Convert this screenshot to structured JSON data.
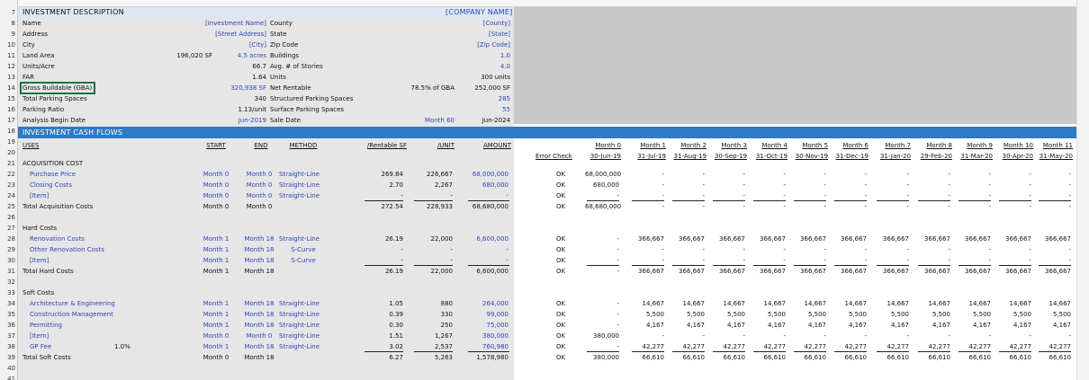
{
  "rownums": [
    "7",
    "8",
    "9",
    "10",
    "11",
    "12",
    "13",
    "14",
    "15",
    "16",
    "17",
    "18",
    "19",
    "20",
    "21",
    "22",
    "23",
    "24",
    "25",
    "26",
    "27",
    "28",
    "29",
    "30",
    "31",
    "32",
    "33",
    "34",
    "35",
    "36",
    "37",
    "38",
    "39",
    "40",
    "41"
  ],
  "investment": {
    "title": "INVESTMENT DESCRIPTION",
    "company": "[COMPANY NAME]",
    "name_label": "Name",
    "name_value": "[Investment Name]",
    "county_label": "County",
    "county_value": "[County]",
    "address_label": "Address",
    "address_value": "[Street Address]",
    "state_label": "State",
    "state_value": "[State]",
    "city_label": "City",
    "city_value": "[City]",
    "zip_label": "Zip Code",
    "zip_value": "[Zip Code]",
    "land_label": "Land Area",
    "land_sf": "196,020 SF",
    "land_acres": "4.5 acres",
    "buildings_label": "Buildings",
    "buildings_value": "1.0",
    "units_acre_label": "Units/Acre",
    "units_acre_value": "66.7",
    "stories_label": "Avg. # of Stories",
    "stories_value": "4.0",
    "far_label": "FAR",
    "far_value": "1.64",
    "units_label": "Units",
    "units_value": "300 units",
    "gba_label": "Gross Buildable (GBA)",
    "gba_value": "320,938 SF",
    "net_rentable_label": "Net Rentable",
    "net_rentable_pct": "78.5% of GBA",
    "net_rentable_value": "252,000 SF",
    "parking_total_label": "Total Parking Spaces",
    "parking_total_value": "340",
    "structured_label": "Structured Parking Spaces",
    "structured_value": "285",
    "ratio_label": "Parking Ratio",
    "ratio_value": "1.13/unit",
    "surface_label": "Surface Parking Spaces",
    "surface_value": "55",
    "begin_label": "Analysis Begin Date",
    "begin_value": "Jun-2019",
    "sale_label": "Sale Date",
    "sale_month": "Month 60",
    "sale_value": "Jun-2024"
  },
  "cashflows": {
    "title": "INVESTMENT CASH FLOWS",
    "col_uses": "USES",
    "col_start": "START",
    "col_end": "END",
    "col_method": "METHOD",
    "col_rentable": "/Rentable SF",
    "col_unit": "/UNIT",
    "col_amount": "AMOUNT",
    "col_error": "Error Check",
    "months": [
      {
        "m": "Month 0",
        "d": "30-Jun-19"
      },
      {
        "m": "Month 1",
        "d": "31-Jul-19"
      },
      {
        "m": "Month 2",
        "d": "31-Aug-19"
      },
      {
        "m": "Month 3",
        "d": "30-Sep-19"
      },
      {
        "m": "Month 4",
        "d": "31-Oct-19"
      },
      {
        "m": "Month 5",
        "d": "30-Nov-19"
      },
      {
        "m": "Month 6",
        "d": "31-Dec-19"
      },
      {
        "m": "Month 7",
        "d": "31-Jan-20"
      },
      {
        "m": "Month 8",
        "d": "29-Feb-20"
      },
      {
        "m": "Month 9",
        "d": "31-Mar-20"
      },
      {
        "m": "Month 10",
        "d": "30-Apr-20"
      },
      {
        "m": "Month 11",
        "d": "31-May-20"
      }
    ],
    "acq_title": "ACQUISITION COST",
    "acq_rows": [
      {
        "label": "Purchase Price",
        "start": "Month 0",
        "end": "Month 0",
        "method": "Straight-Line",
        "rsf": "269.84",
        "unit": "226,667",
        "amount": "68,000,000",
        "check": "OK",
        "vals": [
          "68,000,000",
          "-",
          "-",
          "-",
          "-",
          "-",
          "-",
          "-",
          "-",
          "-",
          "-",
          "-"
        ]
      },
      {
        "label": "Closing Costs",
        "start": "Month 0",
        "end": "Month 0",
        "method": "Straight-Line",
        "rsf": "2.70",
        "unit": "2,267",
        "amount": "680,000",
        "check": "OK",
        "vals": [
          "680,000",
          "-",
          "-",
          "-",
          "-",
          "-",
          "-",
          "-",
          "-",
          "-",
          "-",
          "-"
        ]
      },
      {
        "label": "[Item]",
        "start": "Month 0",
        "end": "Month 0",
        "method": "Straight-Line",
        "rsf": "-",
        "unit": "-",
        "amount": "-",
        "check": "OK",
        "vals": [
          "-",
          "-",
          "-",
          "-",
          "-",
          "-",
          "-",
          "-",
          "-",
          "-",
          "-",
          "-"
        ]
      }
    ],
    "acq_total": {
      "label": "Total Acquisition Costs",
      "start": "Month 0",
      "end": "Month 0",
      "rsf": "272.54",
      "unit": "228,933",
      "amount": "68,680,000",
      "check": "OK",
      "vals": [
        "68,680,000",
        "-",
        "-",
        "-",
        "-",
        "-",
        "-",
        "-",
        "-",
        "-",
        "-",
        "-"
      ]
    },
    "hard_title": "Hard Costs",
    "hard_rows": [
      {
        "label": "Renovation Costs",
        "start": "Month 1",
        "end": "Month 18",
        "method": "Straight-Line",
        "rsf": "26.19",
        "unit": "22,000",
        "amount": "6,600,000",
        "check": "OK",
        "vals": [
          "-",
          "366,667",
          "366,667",
          "366,667",
          "366,667",
          "366,667",
          "366,667",
          "366,667",
          "366,667",
          "366,667",
          "366,667",
          "366,667"
        ]
      },
      {
        "label": "Other Renovation Costs",
        "start": "Month 1",
        "end": "Month 18",
        "method": "S-Curve",
        "rsf": "-",
        "unit": "-",
        "amount": "-",
        "check": "OK",
        "vals": [
          "-",
          "-",
          "-",
          "-",
          "-",
          "-",
          "-",
          "-",
          "-",
          "-",
          "-",
          "-"
        ]
      },
      {
        "label": "[Item]",
        "start": "Month 1",
        "end": "Month 18",
        "method": "S-Curve",
        "rsf": "-",
        "unit": "-",
        "amount": "-",
        "check": "OK",
        "vals": [
          "-",
          "-",
          "-",
          "-",
          "-",
          "-",
          "-",
          "-",
          "-",
          "-",
          "-",
          "-"
        ]
      }
    ],
    "hard_total": {
      "label": "Total Hard Costs",
      "start": "Month 1",
      "end": "Month 18",
      "rsf": "26.19",
      "unit": "22,000",
      "amount": "6,600,000",
      "check": "OK",
      "vals": [
        "-",
        "366,667",
        "366,667",
        "366,667",
        "366,667",
        "366,667",
        "366,667",
        "366,667",
        "366,667",
        "366,667",
        "366,667",
        "366,667"
      ]
    },
    "soft_title": "Soft Costs",
    "soft_rows": [
      {
        "label": "Architecture & Engineering",
        "start": "Month 1",
        "end": "Month 18",
        "method": "Straight-Line",
        "rsf": "1.05",
        "unit": "880",
        "amount": "264,000",
        "check": "OK",
        "vals": [
          "-",
          "14,667",
          "14,667",
          "14,667",
          "14,667",
          "14,667",
          "14,667",
          "14,667",
          "14,667",
          "14,667",
          "14,667",
          "14,667"
        ]
      },
      {
        "label": "Construction Management",
        "start": "Month 1",
        "end": "Month 18",
        "method": "Straight-Line",
        "rsf": "0.39",
        "unit": "330",
        "amount": "99,000",
        "check": "OK",
        "vals": [
          "-",
          "5,500",
          "5,500",
          "5,500",
          "5,500",
          "5,500",
          "5,500",
          "5,500",
          "5,500",
          "5,500",
          "5,500",
          "5,500"
        ]
      },
      {
        "label": "Permitting",
        "start": "Month 1",
        "end": "Month 18",
        "method": "Straight-Line",
        "rsf": "0.30",
        "unit": "250",
        "amount": "75,000",
        "check": "OK",
        "vals": [
          "-",
          "4,167",
          "4,167",
          "4,167",
          "4,167",
          "4,167",
          "4,167",
          "4,167",
          "4,167",
          "4,167",
          "4,167",
          "4,167"
        ]
      },
      {
        "label": "[Item]",
        "start": "Month 0",
        "end": "Month 0",
        "method": "Straight-Line",
        "rsf": "1.51",
        "unit": "1,267",
        "amount": "380,000",
        "check": "OK",
        "vals": [
          "380,000",
          "-",
          "-",
          "-",
          "-",
          "-",
          "-",
          "-",
          "-",
          "-",
          "-",
          "-"
        ]
      },
      {
        "label": "GP Fee",
        "extra": "1.0%",
        "start": "Month 1",
        "end": "Month 18",
        "method": "Straight-Line",
        "rsf": "3.02",
        "unit": "2,537",
        "amount": "760,980",
        "check": "OK",
        "vals": [
          "-",
          "42,277",
          "42,277",
          "42,277",
          "42,277",
          "42,277",
          "42,277",
          "42,277",
          "42,277",
          "42,277",
          "42,277",
          "42,277"
        ]
      }
    ],
    "soft_total": {
      "label": "Total Soft Costs",
      "start": "Month 0",
      "end": "Month 18",
      "rsf": "6.27",
      "unit": "5,263",
      "amount": "1,578,980",
      "check": "OK",
      "vals": [
        "380,000",
        "66,610",
        "66,610",
        "66,610",
        "66,610",
        "66,610",
        "66,610",
        "66,610",
        "66,610",
        "66,610",
        "66,610",
        "66,610"
      ]
    }
  }
}
